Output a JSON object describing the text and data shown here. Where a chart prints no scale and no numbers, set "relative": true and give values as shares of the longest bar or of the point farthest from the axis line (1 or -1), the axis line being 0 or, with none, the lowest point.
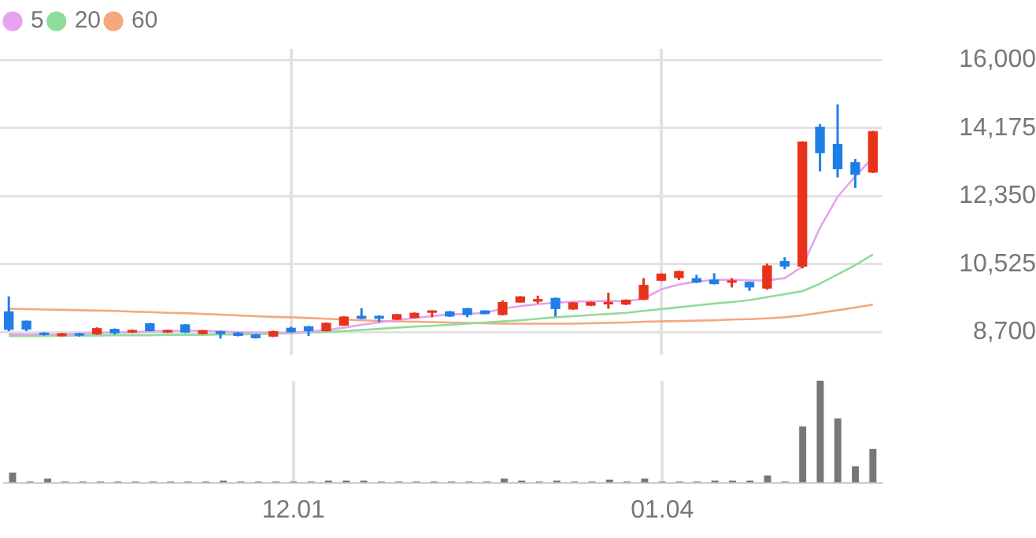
{
  "chart_data": [
    {
      "type": "candlestick",
      "categories": [
        null,
        null,
        null,
        null,
        null,
        null,
        null,
        null,
        null,
        null,
        null,
        null,
        null,
        null,
        null,
        null,
        "12.01",
        null,
        null,
        null,
        null,
        null,
        null,
        null,
        null,
        null,
        null,
        null,
        null,
        null,
        null,
        null,
        null,
        null,
        null,
        null,
        null,
        "01.04",
        null,
        null,
        null,
        null,
        null,
        null,
        null,
        null,
        null,
        null,
        null,
        null
      ],
      "ohlc": [
        [
          9260,
          9658,
          8727,
          8764
        ],
        [
          9010,
          9010,
          8727,
          8770
        ],
        [
          8690,
          8700,
          8610,
          8630
        ],
        [
          8590,
          8680,
          8580,
          8670
        ],
        [
          8670,
          8680,
          8580,
          8610
        ],
        [
          8640,
          8830,
          8630,
          8810
        ],
        [
          8790,
          8800,
          8640,
          8670
        ],
        [
          8690,
          8770,
          8680,
          8760
        ],
        [
          8940,
          8950,
          8720,
          8730
        ],
        [
          8690,
          8770,
          8680,
          8760
        ],
        [
          8910,
          8920,
          8680,
          8690
        ],
        [
          8650,
          8760,
          8640,
          8750
        ],
        [
          8727,
          8740,
          8530,
          8650
        ],
        [
          8690,
          8700,
          8590,
          8600
        ],
        [
          8640,
          8650,
          8530,
          8540
        ],
        [
          8580,
          8740,
          8570,
          8727
        ],
        [
          8820,
          8850,
          8690,
          8700
        ],
        [
          8860,
          8870,
          8600,
          8727
        ],
        [
          8727,
          8960,
          8720,
          8950
        ],
        [
          8875,
          9130,
          8870,
          9120
        ],
        [
          9140,
          9345,
          9050,
          9060
        ],
        [
          9140,
          9150,
          8970,
          9060
        ],
        [
          9035,
          9190,
          9030,
          9185
        ],
        [
          9080,
          9230,
          9070,
          9220
        ],
        [
          9220,
          9290,
          9100,
          9285
        ],
        [
          9260,
          9270,
          9110,
          9120
        ],
        [
          9345,
          9350,
          9100,
          9160
        ],
        [
          9285,
          9290,
          9180,
          9185
        ],
        [
          9160,
          9550,
          9150,
          9510
        ],
        [
          9495,
          9670,
          9490,
          9660
        ],
        [
          9520,
          9680,
          9470,
          9590
        ],
        [
          9620,
          9630,
          9120,
          9320
        ],
        [
          9310,
          9510,
          9300,
          9500
        ],
        [
          9410,
          9520,
          9400,
          9510
        ],
        [
          9445,
          9760,
          9330,
          9510
        ],
        [
          9440,
          9580,
          9430,
          9570
        ],
        [
          9570,
          10150,
          9560,
          9970
        ],
        [
          10080,
          10280,
          10070,
          10270
        ],
        [
          10150,
          10350,
          10100,
          10340
        ],
        [
          10150,
          10240,
          10020,
          10030
        ],
        [
          10110,
          10280,
          9980,
          9990
        ],
        [
          10030,
          10150,
          9900,
          10090
        ],
        [
          10050,
          10060,
          9810,
          9900
        ],
        [
          9870,
          10540,
          9840,
          10490
        ],
        [
          10610,
          10710,
          10390,
          10460
        ],
        [
          10460,
          13820,
          10410,
          13810
        ],
        [
          14210,
          14280,
          13010,
          13500
        ],
        [
          13750,
          14810,
          12850,
          13070
        ],
        [
          13260,
          13345,
          12570,
          12920
        ],
        [
          12980,
          14100,
          12970,
          14090
        ]
      ],
      "colors": [
        "#1f7fe6",
        "#1f7fe6",
        "#1f7fe6",
        "#e8321a",
        "#1f7fe6",
        "#e8321a",
        "#1f7fe6",
        "#e8321a",
        "#1f7fe6",
        "#e8321a",
        "#1f7fe6",
        "#e8321a",
        "#1f7fe6",
        "#1f7fe6",
        "#1f7fe6",
        "#e8321a",
        "#1f7fe6",
        "#1f7fe6",
        "#e8321a",
        "#e8321a",
        "#1f7fe6",
        "#1f7fe6",
        "#e8321a",
        "#e8321a",
        "#e8321a",
        "#1f7fe6",
        "#1f7fe6",
        "#1f7fe6",
        "#e8321a",
        "#e8321a",
        "#e8321a",
        "#1f7fe6",
        "#e8321a",
        "#e8321a",
        "#e8321a",
        "#e8321a",
        "#e8321a",
        "#e8321a",
        "#e8321a",
        "#1f7fe6",
        "#1f7fe6",
        "#e8321a",
        "#1f7fe6",
        "#e8321a",
        "#1f7fe6",
        "#e8321a",
        "#1f7fe6",
        "#1f7fe6",
        "#1f7fe6",
        "#e8321a"
      ],
      "series": [
        {
          "type": "line",
          "name": "5",
          "color": "#e7a2f0",
          "values": [
            8650,
            8640,
            8640,
            8650,
            8660,
            8680,
            8690,
            8700,
            8720,
            8730,
            8740,
            8740,
            8720,
            8700,
            8690,
            8680,
            8690,
            8710,
            8760,
            8820,
            8900,
            8960,
            9020,
            9080,
            9130,
            9180,
            9190,
            9220,
            9330,
            9400,
            9450,
            9490,
            9520,
            9530,
            9540,
            9530,
            9600,
            9850,
            9980,
            10060,
            10100,
            10110,
            10090,
            10090,
            10150,
            10460,
            11500,
            12330,
            12880,
            13380
          ]
        },
        {
          "type": "line",
          "name": "20",
          "color": "#8fdc9a",
          "values": [
            8600,
            8600,
            8600,
            8610,
            8610,
            8610,
            8620,
            8620,
            8620,
            8630,
            8630,
            8630,
            8640,
            8640,
            8650,
            8660,
            8670,
            8690,
            8710,
            8730,
            8760,
            8790,
            8820,
            8850,
            8870,
            8900,
            8930,
            8960,
            8990,
            9020,
            9060,
            9100,
            9130,
            9160,
            9190,
            9220,
            9270,
            9320,
            9370,
            9420,
            9470,
            9510,
            9560,
            9640,
            9720,
            9800,
            10000,
            10250,
            10500,
            10780
          ]
        },
        {
          "type": "line",
          "name": "60",
          "color": "#f5a77e",
          "values": [
            9330,
            9320,
            9310,
            9300,
            9290,
            9280,
            9270,
            9250,
            9240,
            9220,
            9210,
            9190,
            9170,
            9150,
            9130,
            9110,
            9100,
            9080,
            9060,
            9040,
            9020,
            9000,
            8990,
            8980,
            8970,
            8960,
            8950,
            8940,
            8930,
            8930,
            8930,
            8930,
            8930,
            8940,
            8950,
            8960,
            8980,
            8990,
            9000,
            9010,
            9020,
            9040,
            9050,
            9070,
            9100,
            9150,
            9220,
            9290,
            9360,
            9440
          ]
        }
      ],
      "ylim": [
        8100,
        16300
      ],
      "yticks": [
        {
          "value": 8700,
          "label": "8,700"
        },
        {
          "value": 10525,
          "label": "10,525"
        },
        {
          "value": 12350,
          "label": "12,350"
        },
        {
          "value": 14175,
          "label": "14,175"
        },
        {
          "value": 16000,
          "label": "16,000"
        }
      ],
      "grid": true,
      "legend": "top left",
      "marker": "none",
      "tick_labels": "y"
    },
    {
      "type": "bar",
      "categories": [
        null,
        null,
        null,
        null,
        null,
        null,
        null,
        null,
        null,
        null,
        null,
        null,
        null,
        null,
        null,
        null,
        "12.01",
        null,
        null,
        null,
        null,
        null,
        null,
        null,
        null,
        null,
        null,
        null,
        null,
        null,
        null,
        null,
        null,
        null,
        null,
        null,
        null,
        "01.04",
        null,
        null,
        null,
        null,
        null,
        null,
        null,
        null,
        null,
        null,
        null,
        null
      ],
      "values": [
        0.1,
        0.01,
        0.04,
        0.01,
        0.01,
        0.01,
        0.01,
        0.01,
        0.01,
        0.01,
        0.01,
        0.01,
        0.02,
        0.01,
        0.01,
        0.01,
        0.01,
        0.01,
        0.02,
        0.02,
        0.02,
        0.01,
        0.01,
        0.01,
        0.01,
        0.01,
        0.01,
        0.01,
        0.04,
        0.02,
        0.01,
        0.02,
        0.01,
        0.01,
        0.03,
        0.01,
        0.04,
        0.01,
        0.01,
        0.01,
        0.02,
        0.02,
        0.02,
        0.07,
        0.01,
        0.55,
        1,
        0.63,
        0.16,
        0.33
      ],
      "color": "#777777",
      "relative": true,
      "grid": "x",
      "tick_labels": "x"
    }
  ]
}
